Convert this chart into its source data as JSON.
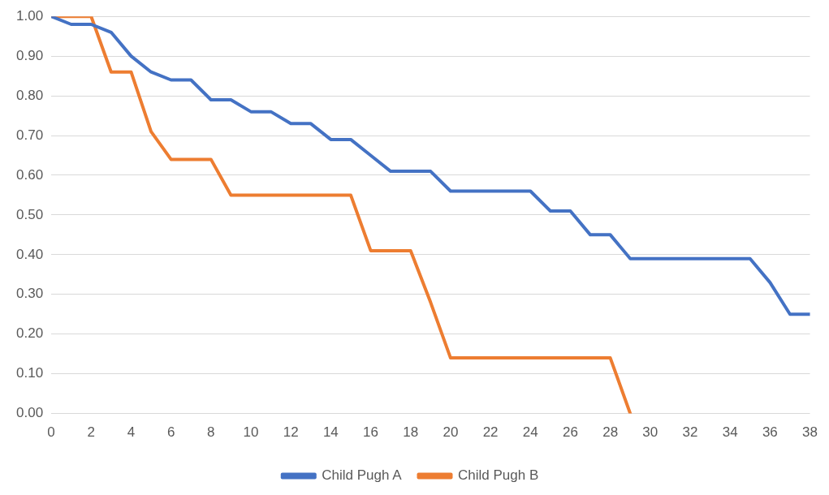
{
  "chart_data": {
    "type": "line",
    "x": [
      0,
      1,
      2,
      3,
      4,
      5,
      6,
      7,
      8,
      9,
      10,
      11,
      12,
      13,
      14,
      15,
      16,
      17,
      18,
      19,
      20,
      21,
      22,
      23,
      24,
      25,
      26,
      27,
      28,
      29,
      30,
      31,
      32,
      33,
      34,
      35,
      36,
      37,
      38
    ],
    "series": [
      {
        "name": "Child Pugh A",
        "color": "#4472c4",
        "values": [
          1.0,
          0.98,
          0.98,
          0.96,
          0.9,
          0.86,
          0.84,
          0.84,
          0.79,
          0.79,
          0.76,
          0.76,
          0.73,
          0.73,
          0.69,
          0.69,
          0.65,
          0.61,
          0.61,
          0.61,
          0.56,
          0.56,
          0.56,
          0.56,
          0.56,
          0.51,
          0.51,
          0.45,
          0.45,
          0.39,
          0.39,
          0.39,
          0.39,
          0.39,
          0.39,
          0.39,
          0.33,
          0.25,
          0.25
        ]
      },
      {
        "name": "Child Pugh B",
        "color": "#ed7d31",
        "values": [
          1.0,
          1.0,
          1.0,
          0.86,
          0.86,
          0.71,
          0.64,
          0.64,
          0.64,
          0.55,
          0.55,
          0.55,
          0.55,
          0.55,
          0.55,
          0.55,
          0.41,
          0.41,
          0.41,
          0.28,
          0.14,
          0.14,
          0.14,
          0.14,
          0.14,
          0.14,
          0.14,
          0.14,
          0.14,
          0.0,
          null,
          null,
          null,
          null,
          null,
          null,
          null,
          null,
          null
        ]
      }
    ],
    "xlim": [
      0,
      38
    ],
    "xticks": [
      0,
      2,
      4,
      6,
      8,
      10,
      12,
      14,
      16,
      18,
      20,
      22,
      24,
      26,
      28,
      30,
      32,
      34,
      36,
      38
    ],
    "ylim": [
      0,
      1
    ],
    "yticks": [
      {
        "value": 0,
        "label": "0.00"
      },
      {
        "value": 0.1,
        "label": "0.10"
      },
      {
        "value": 0.2,
        "label": "0.20"
      },
      {
        "value": 0.3,
        "label": "0.30"
      },
      {
        "value": 0.4,
        "label": "0.40"
      },
      {
        "value": 0.5,
        "label": "0.50"
      },
      {
        "value": 0.6,
        "label": "0.60"
      },
      {
        "value": 0.7,
        "label": "0.70"
      },
      {
        "value": 0.8,
        "label": "0.80"
      },
      {
        "value": 0.9,
        "label": "0.90"
      },
      {
        "value": 1,
        "label": "1.00"
      }
    ],
    "grid": "y",
    "legend": "bottom",
    "marker": "none",
    "line_style": "solid"
  }
}
